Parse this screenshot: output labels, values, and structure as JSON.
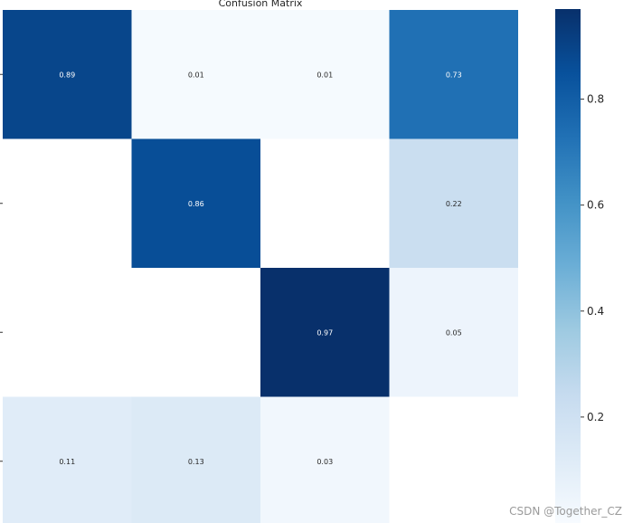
{
  "chart_data": {
    "type": "heatmap",
    "title": "Confusion Matrix",
    "rows": 4,
    "cols": 4,
    "values": [
      [
        0.89,
        0.01,
        0.01,
        0.73
      ],
      [
        null,
        0.86,
        null,
        0.22
      ],
      [
        null,
        null,
        0.97,
        0.05
      ],
      [
        0.11,
        0.13,
        0.03,
        null
      ]
    ],
    "colormap": "Blues",
    "vmin": 0.0,
    "vmax": 0.97,
    "colorbar": {
      "ticks": [
        0.2,
        0.4,
        0.6,
        0.8
      ],
      "tick_labels": [
        "0.2",
        "0.4",
        "0.6",
        "0.8"
      ]
    },
    "colors": {
      "low": "#f7fbff",
      "high": "#08306b",
      "label_light": "#ffffff",
      "label_dark": "#262626"
    }
  },
  "watermark": "CSDN @Together_CZ"
}
